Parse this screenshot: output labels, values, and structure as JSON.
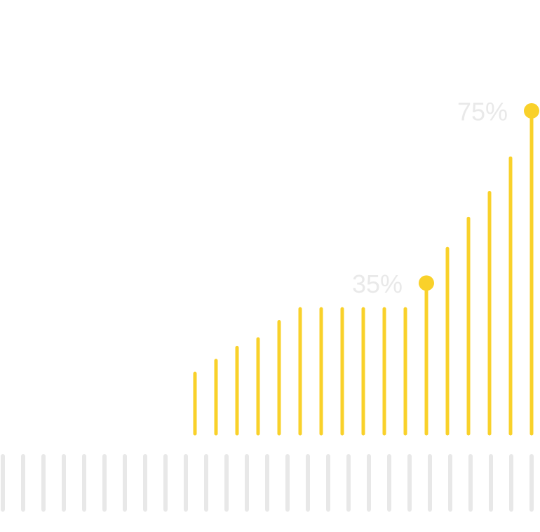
{
  "chart_data": {
    "type": "bar",
    "values": [
      14,
      17,
      20,
      22,
      26,
      29,
      29,
      29,
      29,
      29,
      29,
      35,
      43,
      50,
      56,
      64,
      75
    ],
    "value_labels": [
      null,
      null,
      null,
      null,
      null,
      null,
      null,
      null,
      null,
      null,
      null,
      "35%",
      null,
      null,
      null,
      null,
      "75%"
    ],
    "color": "#f9d12a",
    "ylim": [
      0,
      80
    ]
  }
}
